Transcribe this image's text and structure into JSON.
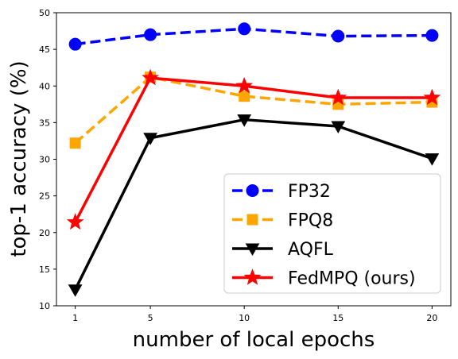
{
  "chart_data": {
    "type": "line",
    "xlabel": "number of local epochs",
    "ylabel": "top-1 accuracy (%)",
    "x": [
      1,
      5,
      10,
      15,
      20
    ],
    "xlim": [
      0,
      21
    ],
    "ylim": [
      10,
      50
    ],
    "xticks": [
      1,
      5,
      10,
      15,
      20
    ],
    "yticks": [
      10,
      15,
      20,
      25,
      30,
      35,
      40,
      45,
      50
    ],
    "grid": false,
    "legend_position": "lower-right",
    "series": [
      {
        "name": "FP32",
        "values": [
          45.7,
          47.0,
          47.8,
          46.8,
          46.9
        ],
        "color": "#0000ff",
        "dash": "dashed",
        "marker": "circle"
      },
      {
        "name": "FPQ8",
        "values": [
          32.2,
          41.2,
          38.6,
          37.5,
          37.8
        ],
        "color": "#ffa500",
        "dash": "dashed",
        "marker": "square"
      },
      {
        "name": "AQFL",
        "values": [
          12.2,
          32.9,
          35.4,
          34.5,
          30.1
        ],
        "color": "#000000",
        "dash": "solid",
        "marker": "triangle-down"
      },
      {
        "name": "FedMPQ (ours)",
        "values": [
          21.4,
          41.1,
          40.0,
          38.4,
          38.4
        ],
        "color": "#ff0000",
        "dash": "solid",
        "marker": "star"
      }
    ]
  }
}
